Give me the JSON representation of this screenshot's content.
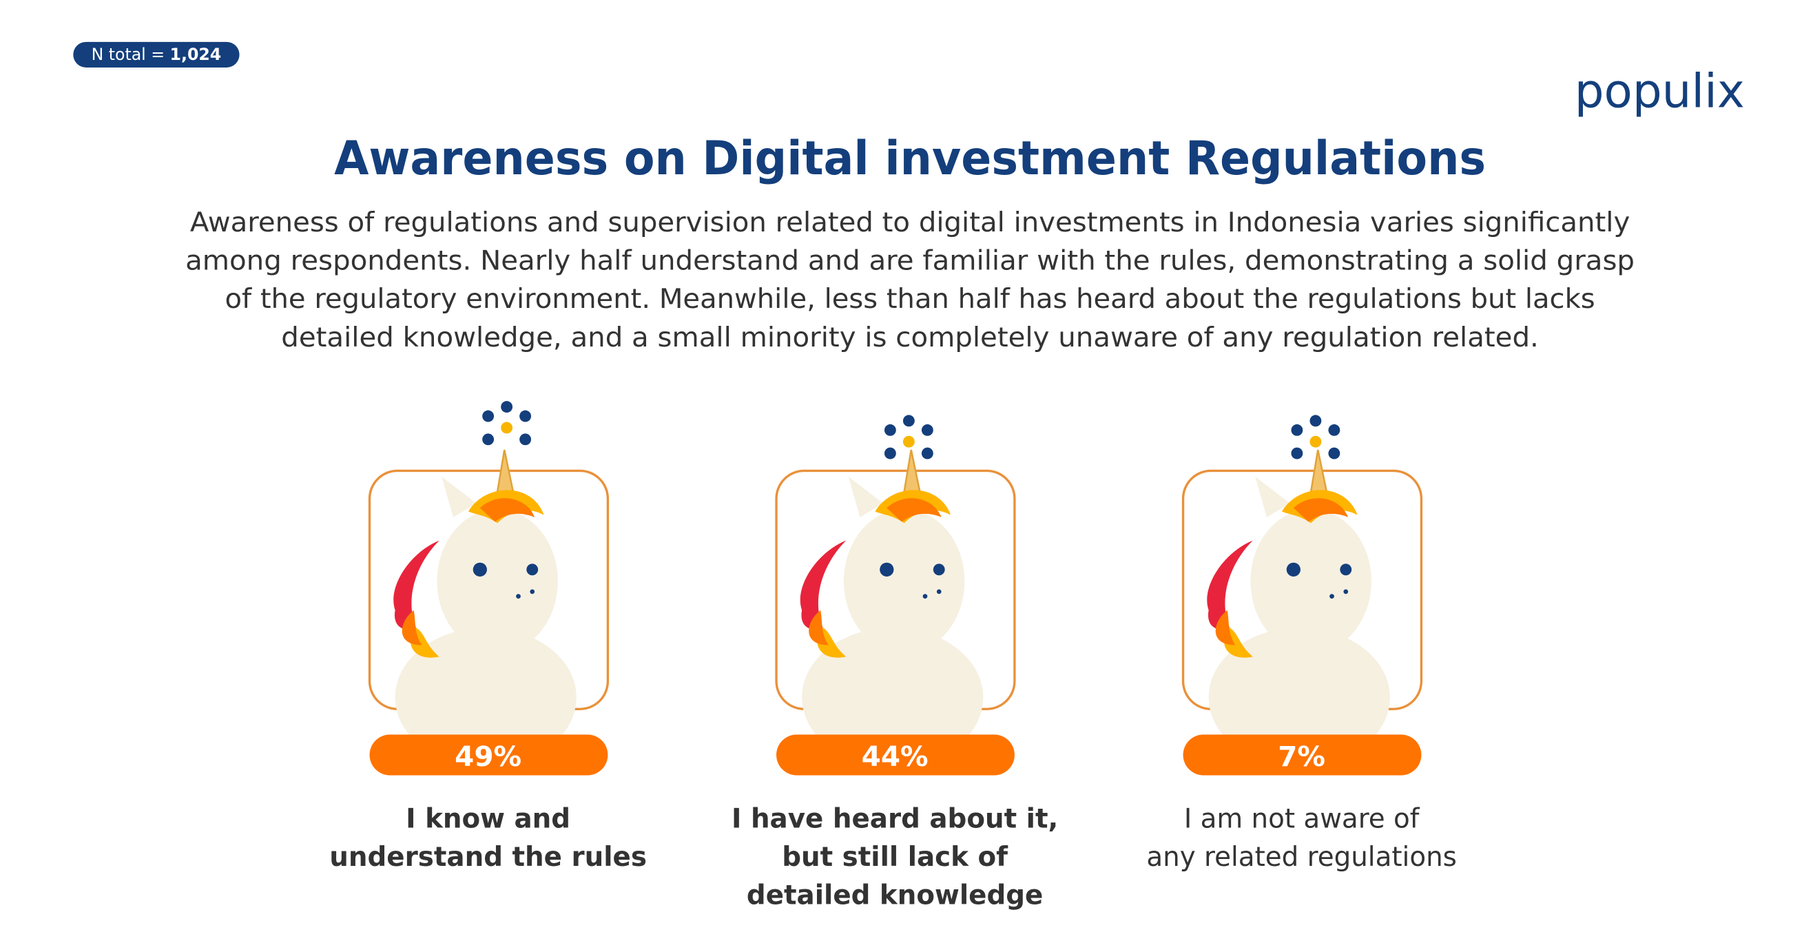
{
  "badge": {
    "label": "N total = ",
    "value": "1,024"
  },
  "logo": "populix",
  "title": "Awareness on Digital investment Regulations",
  "description": [
    "Awareness of regulations and supervision related to digital investments in Indonesia varies significantly",
    "among respondents. Nearly half understand and are familiar with the rules, demonstrating a solid grasp",
    "of the regulatory environment. Meanwhile, less than half has heard about the regulations but lacks",
    "detailed knowledge, and a small minority is completely unaware of any regulation related."
  ],
  "cards": [
    {
      "percent": "49%",
      "label": [
        "I know and",
        "understand the rules"
      ],
      "bold": true
    },
    {
      "percent": "44%",
      "label": [
        "I have heard about it,",
        "but still lack of",
        "detailed knowledge"
      ],
      "bold": true
    },
    {
      "percent": "7%",
      "label": [
        "I am not aware of",
        "any related regulations"
      ],
      "bold": false
    }
  ]
}
